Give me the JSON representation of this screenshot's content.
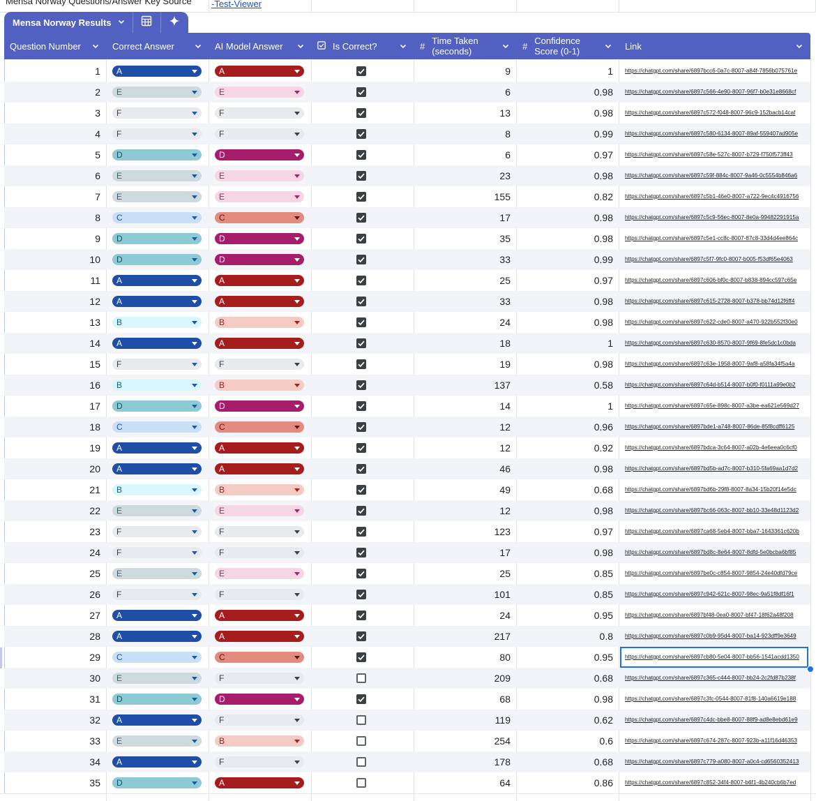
{
  "top_bar": {
    "left_text": "Mensa Norway Questions/Answer Key Source",
    "link_text": "-Test-Viewer"
  },
  "table": {
    "name": "Mensa Norway Results",
    "columns": [
      {
        "label": "Question Number",
        "icon": ""
      },
      {
        "label": "Correct Answer",
        "icon": ""
      },
      {
        "label": "AI Model Answer",
        "icon": ""
      },
      {
        "label": "Is Correct?",
        "icon": "checkbox-icon"
      },
      {
        "label": "Time Taken (seconds)",
        "icon": "number-icon"
      },
      {
        "label": "Confidence Score (0-1)",
        "icon": "number-icon"
      },
      {
        "label": "Link",
        "icon": ""
      }
    ]
  },
  "chip_colors": {
    "correct": {
      "A": {
        "bg": "#1f4ea6",
        "fg": "#ffffff"
      },
      "B": {
        "bg": "#d7f7fc",
        "fg": "#1b5e7a"
      },
      "C": {
        "bg": "#c9dff5",
        "fg": "#1a5aa6"
      },
      "D": {
        "bg": "#8ecad6",
        "fg": "#0f4f5c"
      },
      "E": {
        "bg": "#cfdadf",
        "fg": "#3e5d68"
      },
      "F": {
        "bg": "#e8eaed",
        "fg": "#3c4043"
      }
    },
    "model": {
      "A": {
        "bg": "#a51d1d",
        "fg": "#ffffff"
      },
      "B": {
        "bg": "#f5cbc6",
        "fg": "#a4211c"
      },
      "C": {
        "bg": "#e48b7f",
        "fg": "#5b1711"
      },
      "D": {
        "bg": "#a61e6b",
        "fg": "#ffffff"
      },
      "E": {
        "bg": "#f6d6e3",
        "fg": "#a2246b"
      },
      "F": {
        "bg": "#e8eaed",
        "fg": "#3c4043"
      }
    }
  },
  "selected_row": 29,
  "rows": [
    {
      "q": "1",
      "correct": "A",
      "model": "A",
      "is_correct": true,
      "time": "9",
      "conf": "1",
      "link": "https://chatgpt.com/share/6897bcc6-0a7c-8007-a84f-7856b075761e"
    },
    {
      "q": "2",
      "correct": "E",
      "model": "E",
      "is_correct": true,
      "time": "6",
      "conf": "0.98",
      "link": "https://chatgpt.com/share/6897c566-4e90-8007-96f7-b0e31e8668cf"
    },
    {
      "q": "3",
      "correct": "F",
      "model": "F",
      "is_correct": true,
      "time": "13",
      "conf": "0.98",
      "link": "https://chatgpt.com/share/6897c572-f048-8007-96c9-152bacb14caf"
    },
    {
      "q": "4",
      "correct": "F",
      "model": "F",
      "is_correct": true,
      "time": "8",
      "conf": "0.99",
      "link": "https://chatgpt.com/share/6897c580-6134-8007-89af-559407ad905e"
    },
    {
      "q": "5",
      "correct": "D",
      "model": "D",
      "is_correct": true,
      "time": "6",
      "conf": "0.97",
      "link": "https://chatgpt.com/share/6897c58e-527c-8007-b729-f750f573ff43"
    },
    {
      "q": "6",
      "correct": "E",
      "model": "E",
      "is_correct": true,
      "time": "23",
      "conf": "0.98",
      "link": "https://chatgpt.com/share/6897c59f-884c-8007-9a46-0c5554b846a6"
    },
    {
      "q": "7",
      "correct": "E",
      "model": "E",
      "is_correct": true,
      "time": "155",
      "conf": "0.82",
      "link": "https://chatgpt.com/share/6897c5b1-46e0-8007-a722-9ec4c4916756"
    },
    {
      "q": "8",
      "correct": "C",
      "model": "C",
      "is_correct": true,
      "time": "17",
      "conf": "0.98",
      "link": "https://chatgpt.com/share/6897c5c9-56ec-8007-8e0a-99482291915a"
    },
    {
      "q": "9",
      "correct": "D",
      "model": "D",
      "is_correct": true,
      "time": "35",
      "conf": "0.98",
      "link": "https://chatgpt.com/share/6897c5e1-cc8c-8007-87c8-33d4d4ee864c"
    },
    {
      "q": "10",
      "correct": "D",
      "model": "D",
      "is_correct": true,
      "time": "33",
      "conf": "0.99",
      "link": "https://chatgpt.com/share/6897c5f7-9fc0-8007-b005-f53df65e4063"
    },
    {
      "q": "11",
      "correct": "A",
      "model": "A",
      "is_correct": true,
      "time": "25",
      "conf": "0.97",
      "link": "https://chatgpt.com/share/6897c606-bf0c-8007-b838-894cc597c65e"
    },
    {
      "q": "12",
      "correct": "A",
      "model": "A",
      "is_correct": true,
      "time": "33",
      "conf": "0.98",
      "link": "https://chatgpt.com/share/6897c615-2728-8007-b378-bb74d12f6ff4"
    },
    {
      "q": "13",
      "correct": "B",
      "model": "B",
      "is_correct": true,
      "time": "24",
      "conf": "0.98",
      "link": "https://chatgpt.com/share/6897c622-cde0-8007-a470-922b552f30e0"
    },
    {
      "q": "14",
      "correct": "A",
      "model": "A",
      "is_correct": true,
      "time": "18",
      "conf": "1",
      "link": "https://chatgpt.com/share/6897c630-8570-8007-9f69-8fe5dc1c0bda"
    },
    {
      "q": "15",
      "correct": "F",
      "model": "F",
      "is_correct": true,
      "time": "19",
      "conf": "0.98",
      "link": "https://chatgpt.com/share/6897c63e-1958-8007-9af8-a58fa34f5a4a"
    },
    {
      "q": "16",
      "correct": "B",
      "model": "B",
      "is_correct": true,
      "time": "137",
      "conf": "0.58",
      "link": "https://chatgpt.com/share/6897c64d-b514-8007-b0f0-f0111a99e0b2"
    },
    {
      "q": "17",
      "correct": "D",
      "model": "D",
      "is_correct": true,
      "time": "14",
      "conf": "1",
      "link": "https://chatgpt.com/share/6897c65e-898c-8007-a3be-ea621e569d27"
    },
    {
      "q": "18",
      "correct": "C",
      "model": "C",
      "is_correct": true,
      "time": "12",
      "conf": "0.96",
      "link": "https://chatgpt.com/share/6897bde1-a748-8007-86de-85f8cdff6125"
    },
    {
      "q": "19",
      "correct": "A",
      "model": "A",
      "is_correct": true,
      "time": "12",
      "conf": "0.92",
      "link": "https://chatgpt.com/share/6897bdca-3c64-8007-a02b-4e6eea0c6cf0"
    },
    {
      "q": "20",
      "correct": "A",
      "model": "A",
      "is_correct": true,
      "time": "46",
      "conf": "0.98",
      "link": "https://chatgpt.com/share/6897bd5b-ad7c-8007-b310-5fa69aa1d7d2"
    },
    {
      "q": "21",
      "correct": "B",
      "model": "B",
      "is_correct": true,
      "time": "49",
      "conf": "0.68",
      "link": "https://chatgpt.com/share/6897bd6b-29f8-8007-8a34-15b20f14e5dc"
    },
    {
      "q": "22",
      "correct": "E",
      "model": "E",
      "is_correct": true,
      "time": "12",
      "conf": "0.98",
      "link": "https://chatgpt.com/share/6897bc66-063c-8007-bb10-33e48d1123d2"
    },
    {
      "q": "23",
      "correct": "F",
      "model": "F",
      "is_correct": true,
      "time": "123",
      "conf": "0.97",
      "link": "https://chatgpt.com/share/6897ca68-5eb4-8007-bba7-1643361c620b"
    },
    {
      "q": "24",
      "correct": "F",
      "model": "F",
      "is_correct": true,
      "time": "17",
      "conf": "0.98",
      "link": "https://chatgpt.com/share/6897bd8c-8e64-8007-8dfd-5e0bcba6bf85"
    },
    {
      "q": "25",
      "correct": "E",
      "model": "E",
      "is_correct": true,
      "time": "25",
      "conf": "0.85",
      "link": "https://chatgpt.com/share/6897be0c-c854-8007-9854-24e40dfd79ce"
    },
    {
      "q": "26",
      "correct": "F",
      "model": "F",
      "is_correct": true,
      "time": "101",
      "conf": "0.85",
      "link": "https://chatgpt.com/share/6897c942-621c-8007-98ec-9a51f8df16f1"
    },
    {
      "q": "27",
      "correct": "A",
      "model": "A",
      "is_correct": true,
      "time": "24",
      "conf": "0.95",
      "link": "https://chatgpt.com/share/6897bf48-0ea0-8007-bf47-18f62a48f208"
    },
    {
      "q": "28",
      "correct": "A",
      "model": "A",
      "is_correct": true,
      "time": "217",
      "conf": "0.8",
      "link": "https://chatgpt.com/share/6897c0b9-95d4-8007-ba14-923dff9e3649"
    },
    {
      "q": "29",
      "correct": "C",
      "model": "C",
      "is_correct": true,
      "time": "80",
      "conf": "0.95",
      "link": "https://chatgpt.com/share/6897cb80-5e04-8007-bb56-1541acdd1350"
    },
    {
      "q": "30",
      "correct": "E",
      "model": "F",
      "is_correct": false,
      "time": "209",
      "conf": "0.68",
      "link": "https://chatgpt.com/share/6897c365-c444-8007-bb24-2c2fd87b238f"
    },
    {
      "q": "31",
      "correct": "D",
      "model": "D",
      "is_correct": true,
      "time": "68",
      "conf": "0.98",
      "link": "https://chatgpt.com/share/6897c3fc-0544-8007-81f8-140a6619e188"
    },
    {
      "q": "32",
      "correct": "A",
      "model": "F",
      "is_correct": false,
      "time": "119",
      "conf": "0.62",
      "link": "https://chatgpt.com/share/6897c4dc-bbe8-8007-88f9-ad8e8ebd61e9"
    },
    {
      "q": "33",
      "correct": "E",
      "model": "B",
      "is_correct": false,
      "time": "254",
      "conf": "0.6",
      "link": "https://chatgpt.com/share/6897c674-287c-8007-923b-a11f16d46353"
    },
    {
      "q": "34",
      "correct": "A",
      "model": "F",
      "is_correct": false,
      "time": "178",
      "conf": "0.68",
      "link": "https://chatgpt.com/share/6897c779-a080-8007-a0c4-cd6560352413"
    },
    {
      "q": "35",
      "correct": "D",
      "model": "A",
      "is_correct": false,
      "time": "64",
      "conf": "0.86",
      "link": "https://chatgpt.com/share/6897c852-34f4-8007-b6f1-4b240cb6b7ed"
    }
  ]
}
